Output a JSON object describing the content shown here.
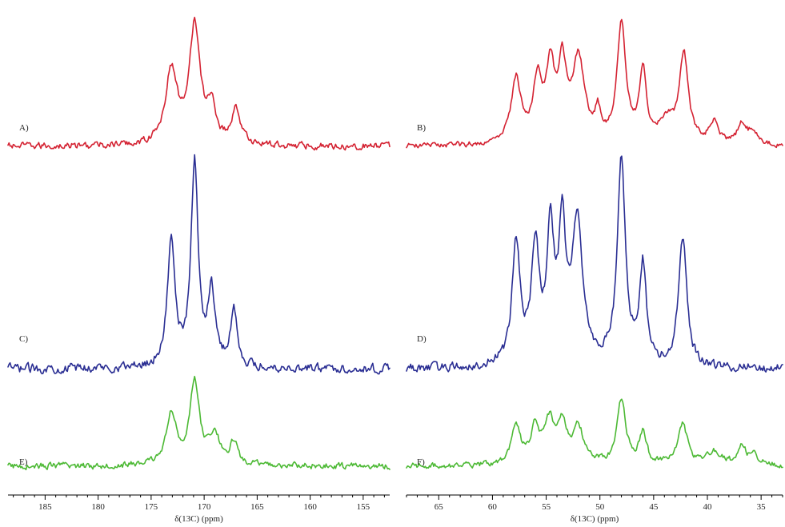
{
  "chart_data": [
    {
      "id": "left",
      "type": "line",
      "xlabel": "δ(13C) (ppm)",
      "xlim": [
        188.5,
        152.5
      ],
      "x_reversed": true,
      "tick_labels": [
        185,
        180,
        175,
        170,
        165,
        160,
        155
      ],
      "minor_tick_step": 1,
      "series": [
        {
          "label": "A)",
          "color": "#d42232",
          "peaks": [
            [
              173.1,
              0.62,
              0.65
            ],
            [
              170.9,
              1.0,
              0.62
            ],
            [
              169.3,
              0.3,
              0.45
            ],
            [
              167.0,
              0.3,
              0.5
            ]
          ],
          "noise": 0.045
        },
        {
          "label": "C)",
          "color": "#2a2e93",
          "peaks": [
            [
              173.1,
              0.64,
              0.42
            ],
            [
              170.9,
              1.0,
              0.4
            ],
            [
              169.3,
              0.36,
              0.42
            ],
            [
              167.2,
              0.28,
              0.38
            ]
          ],
          "noise": 0.035
        },
        {
          "label": "E)",
          "color": "#4cb934",
          "peaks": [
            [
              173.1,
              0.55,
              0.6
            ],
            [
              170.9,
              0.9,
              0.55
            ],
            [
              169.0,
              0.32,
              0.6
            ],
            [
              167.2,
              0.24,
              0.45
            ]
          ],
          "noise": 0.055
        }
      ]
    },
    {
      "id": "right",
      "type": "line",
      "xlabel": "δ(13C) (ppm)",
      "xlim": [
        68.0,
        33.0
      ],
      "x_reversed": true,
      "tick_labels": [
        65,
        60,
        55,
        50,
        45,
        40,
        35
      ],
      "minor_tick_step": 1,
      "series": [
        {
          "label": "B)",
          "color": "#d42232",
          "peaks": [
            [
              57.8,
              0.55,
              0.55
            ],
            [
              55.8,
              0.52,
              0.5
            ],
            [
              54.6,
              0.6,
              0.45
            ],
            [
              53.5,
              0.6,
              0.45
            ],
            [
              52.0,
              0.7,
              0.7
            ],
            [
              50.2,
              0.22,
              0.3
            ],
            [
              48.0,
              1.0,
              0.5
            ],
            [
              46.0,
              0.62,
              0.38
            ],
            [
              42.2,
              0.75,
              0.5
            ],
            [
              43.8,
              0.18,
              0.8
            ],
            [
              39.4,
              0.18,
              0.5
            ],
            [
              36.8,
              0.17,
              0.5
            ],
            [
              35.8,
              0.1,
              0.5
            ]
          ],
          "noise": 0.035
        },
        {
          "label": "D)",
          "color": "#2a2e93",
          "peaks": [
            [
              57.8,
              0.6,
              0.45
            ],
            [
              56.0,
              0.56,
              0.45
            ],
            [
              54.6,
              0.63,
              0.4
            ],
            [
              53.5,
              0.62,
              0.4
            ],
            [
              52.1,
              0.7,
              0.6
            ],
            [
              48.0,
              1.0,
              0.45
            ],
            [
              46.0,
              0.48,
              0.38
            ],
            [
              42.3,
              0.64,
              0.45
            ]
          ],
          "noise": 0.035
        },
        {
          "label": "F)",
          "color": "#4cb934",
          "peaks": [
            [
              57.8,
              0.43,
              0.5
            ],
            [
              56.0,
              0.4,
              0.5
            ],
            [
              54.7,
              0.45,
              0.5
            ],
            [
              53.5,
              0.46,
              0.5
            ],
            [
              52.0,
              0.4,
              0.6
            ],
            [
              48.0,
              0.72,
              0.5
            ],
            [
              46.0,
              0.34,
              0.4
            ],
            [
              42.3,
              0.44,
              0.55
            ],
            [
              39.4,
              0.15,
              0.8
            ],
            [
              36.8,
              0.2,
              0.5
            ],
            [
              35.6,
              0.1,
              0.5
            ]
          ],
          "noise": 0.05
        }
      ]
    }
  ]
}
